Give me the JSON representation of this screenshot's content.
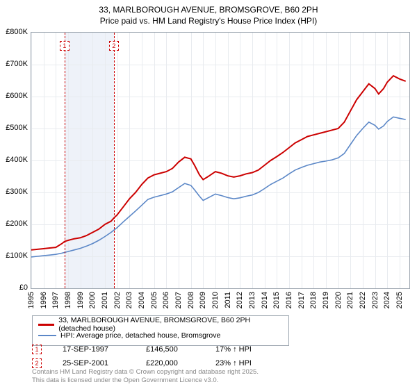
{
  "title_line1": "33, MARLBOROUGH AVENUE, BROMSGROVE, B60 2PH",
  "title_line2": "Price paid vs. HM Land Registry's House Price Index (HPI)",
  "chart": {
    "type": "line",
    "xlim": [
      1995,
      2025.8
    ],
    "ylim": [
      0,
      800
    ],
    "yticks": [
      0,
      100,
      200,
      300,
      400,
      500,
      600,
      700,
      800
    ],
    "ytick_labels": [
      "£0",
      "£100K",
      "£200K",
      "£300K",
      "£400K",
      "£500K",
      "£600K",
      "£700K",
      "£800K"
    ],
    "xticks": [
      1995,
      1996,
      1997,
      1998,
      1999,
      2000,
      2001,
      2002,
      2003,
      2004,
      2005,
      2006,
      2007,
      2008,
      2009,
      2010,
      2011,
      2012,
      2013,
      2014,
      2015,
      2016,
      2017,
      2018,
      2019,
      2020,
      2021,
      2022,
      2023,
      2024,
      2025
    ],
    "series": [
      {
        "name": "33, MARLBOROUGH AVENUE, BROMSGROVE, B60 2PH (detached house)",
        "color": "#cc0000",
        "width": 2,
        "points": [
          [
            1995,
            120
          ],
          [
            1995.5,
            122
          ],
          [
            1996,
            124
          ],
          [
            1996.5,
            126
          ],
          [
            1997,
            128
          ],
          [
            1997.5,
            140
          ],
          [
            1997.71,
            146.5
          ],
          [
            1998,
            150
          ],
          [
            1998.5,
            155
          ],
          [
            1999,
            158
          ],
          [
            1999.5,
            165
          ],
          [
            2000,
            175
          ],
          [
            2000.5,
            185
          ],
          [
            2001,
            200
          ],
          [
            2001.5,
            210
          ],
          [
            2001.73,
            220
          ],
          [
            2002,
            230
          ],
          [
            2002.5,
            255
          ],
          [
            2003,
            280
          ],
          [
            2003.5,
            300
          ],
          [
            2004,
            325
          ],
          [
            2004.5,
            345
          ],
          [
            2005,
            355
          ],
          [
            2005.5,
            360
          ],
          [
            2006,
            365
          ],
          [
            2006.5,
            375
          ],
          [
            2007,
            395
          ],
          [
            2007.5,
            410
          ],
          [
            2008,
            405
          ],
          [
            2008.3,
            385
          ],
          [
            2008.7,
            355
          ],
          [
            2009,
            340
          ],
          [
            2009.5,
            352
          ],
          [
            2010,
            365
          ],
          [
            2010.5,
            360
          ],
          [
            2011,
            352
          ],
          [
            2011.5,
            348
          ],
          [
            2012,
            352
          ],
          [
            2012.5,
            358
          ],
          [
            2013,
            362
          ],
          [
            2013.5,
            370
          ],
          [
            2014,
            385
          ],
          [
            2014.5,
            400
          ],
          [
            2015,
            412
          ],
          [
            2015.5,
            425
          ],
          [
            2016,
            440
          ],
          [
            2016.5,
            455
          ],
          [
            2017,
            465
          ],
          [
            2017.5,
            475
          ],
          [
            2018,
            480
          ],
          [
            2018.5,
            485
          ],
          [
            2019,
            490
          ],
          [
            2019.5,
            495
          ],
          [
            2020,
            500
          ],
          [
            2020.5,
            520
          ],
          [
            2021,
            555
          ],
          [
            2021.5,
            590
          ],
          [
            2022,
            615
          ],
          [
            2022.5,
            640
          ],
          [
            2023,
            625
          ],
          [
            2023.3,
            608
          ],
          [
            2023.7,
            625
          ],
          [
            2024,
            645
          ],
          [
            2024.5,
            665
          ],
          [
            2025,
            655
          ],
          [
            2025.5,
            648
          ]
        ]
      },
      {
        "name": "HPI: Average price, detached house, Bromsgrove",
        "color": "#5b87c7",
        "width": 1.6,
        "points": [
          [
            1995,
            98
          ],
          [
            1995.5,
            100
          ],
          [
            1996,
            102
          ],
          [
            1996.5,
            104
          ],
          [
            1997,
            106
          ],
          [
            1997.5,
            110
          ],
          [
            1998,
            115
          ],
          [
            1998.5,
            120
          ],
          [
            1999,
            125
          ],
          [
            1999.5,
            132
          ],
          [
            2000,
            140
          ],
          [
            2000.5,
            150
          ],
          [
            2001,
            162
          ],
          [
            2001.5,
            175
          ],
          [
            2002,
            190
          ],
          [
            2002.5,
            208
          ],
          [
            2003,
            225
          ],
          [
            2003.5,
            242
          ],
          [
            2004,
            260
          ],
          [
            2004.5,
            278
          ],
          [
            2005,
            285
          ],
          [
            2005.5,
            290
          ],
          [
            2006,
            295
          ],
          [
            2006.5,
            302
          ],
          [
            2007,
            315
          ],
          [
            2007.5,
            328
          ],
          [
            2008,
            322
          ],
          [
            2008.3,
            308
          ],
          [
            2008.7,
            288
          ],
          [
            2009,
            275
          ],
          [
            2009.5,
            285
          ],
          [
            2010,
            295
          ],
          [
            2010.5,
            290
          ],
          [
            2011,
            284
          ],
          [
            2011.5,
            280
          ],
          [
            2012,
            283
          ],
          [
            2012.5,
            288
          ],
          [
            2013,
            292
          ],
          [
            2013.5,
            300
          ],
          [
            2014,
            312
          ],
          [
            2014.5,
            325
          ],
          [
            2015,
            335
          ],
          [
            2015.5,
            345
          ],
          [
            2016,
            358
          ],
          [
            2016.5,
            370
          ],
          [
            2017,
            378
          ],
          [
            2017.5,
            385
          ],
          [
            2018,
            390
          ],
          [
            2018.5,
            395
          ],
          [
            2019,
            398
          ],
          [
            2019.5,
            402
          ],
          [
            2020,
            408
          ],
          [
            2020.5,
            422
          ],
          [
            2021,
            450
          ],
          [
            2021.5,
            478
          ],
          [
            2022,
            500
          ],
          [
            2022.5,
            520
          ],
          [
            2023,
            510
          ],
          [
            2023.3,
            498
          ],
          [
            2023.7,
            508
          ],
          [
            2024,
            522
          ],
          [
            2024.5,
            536
          ],
          [
            2025,
            532
          ],
          [
            2025.5,
            528
          ]
        ]
      }
    ],
    "sale_band": {
      "start": 1997.71,
      "end": 2001.73,
      "color": "#eef2f9"
    },
    "sale_markers": [
      {
        "n": "1",
        "x": 1997.71,
        "date": "17-SEP-1997",
        "price": "£146,500",
        "vs_hpi": "17% ↑ HPI"
      },
      {
        "n": "2",
        "x": 2001.73,
        "date": "25-SEP-2001",
        "price": "£220,000",
        "vs_hpi": "23% ↑ HPI"
      }
    ],
    "grid_color": "#e8ebef",
    "border_color": "#9da6b0"
  },
  "legend": {
    "items": [
      {
        "color": "#cc0000",
        "label": "33, MARLBOROUGH AVENUE, BROMSGROVE, B60 2PH (detached house)"
      },
      {
        "color": "#5b87c7",
        "label": "HPI: Average price, detached house, Bromsgrove"
      }
    ]
  },
  "footer_line1": "Contains HM Land Registry data © Crown copyright and database right 2025.",
  "footer_line2": "This data is licensed under the Open Government Licence v3.0."
}
